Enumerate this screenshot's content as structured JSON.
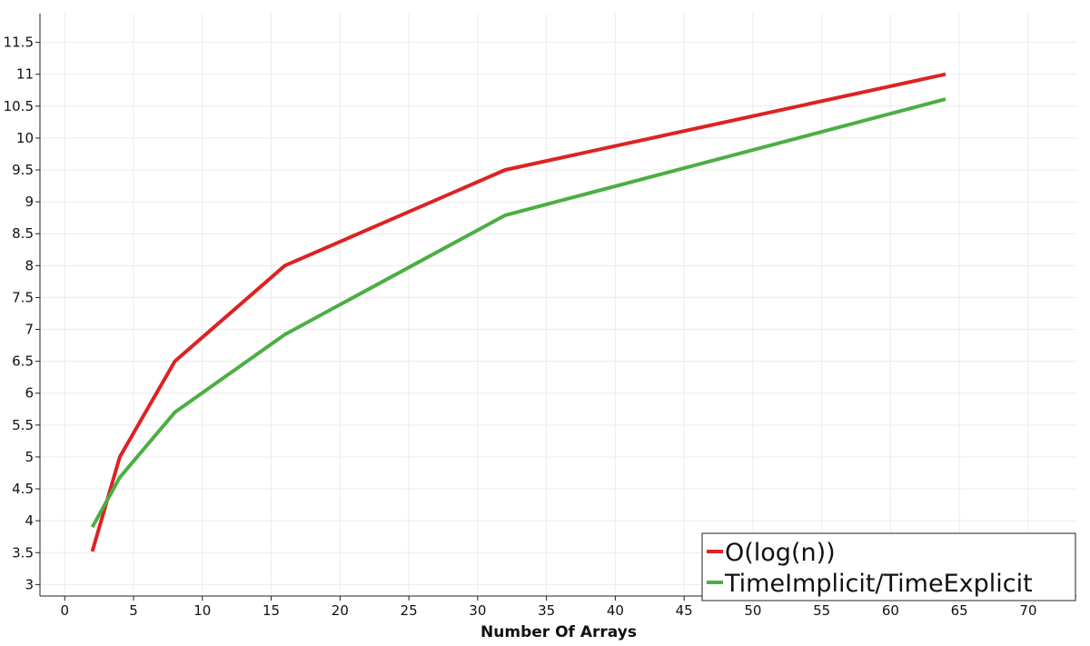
{
  "chart_data": {
    "type": "line",
    "title": "",
    "xlabel": "Number Of Arrays",
    "ylabel": "",
    "xlim": [
      -1.8,
      73.5
    ],
    "ylim": [
      2.82,
      11.95
    ],
    "xticks": [
      0,
      5,
      10,
      15,
      20,
      25,
      30,
      35,
      40,
      45,
      50,
      55,
      60,
      65,
      70
    ],
    "yticks": [
      3,
      3.5,
      4,
      4.5,
      5,
      5.5,
      6,
      6.5,
      7,
      7.5,
      8,
      8.5,
      9,
      9.5,
      10,
      10.5,
      11,
      11.5
    ],
    "grid": true,
    "legend_position": "bottom-right",
    "series": [
      {
        "name": "O(log(n))",
        "color": "#dd2222",
        "x": [
          2,
          4,
          8,
          16,
          32,
          64
        ],
        "y": [
          3.52,
          5.0,
          6.5,
          8.0,
          9.5,
          11.0
        ]
      },
      {
        "name": "TimeImplicit/TimeExplicit",
        "color": "#4cae44",
        "x": [
          2,
          4,
          8,
          16,
          32,
          64
        ],
        "y": [
          3.9,
          4.68,
          5.7,
          6.92,
          8.79,
          10.61
        ]
      }
    ]
  }
}
